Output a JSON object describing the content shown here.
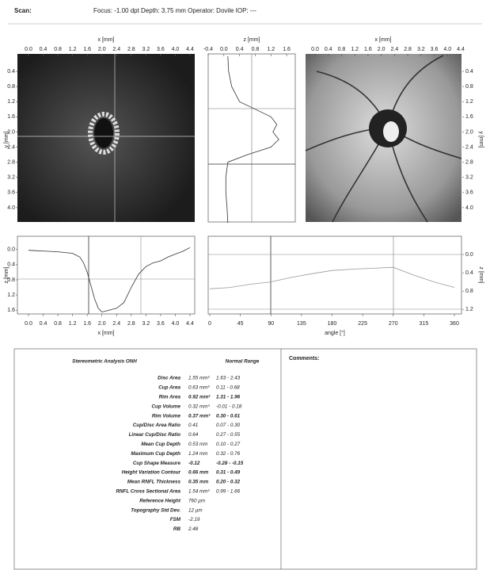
{
  "header": {
    "scan": "Scan:",
    "info": "Focus: -1.00 dpt  Depth: 3.75 mm  Operator: Dovile  IOP: ---"
  },
  "plots": {
    "topo": {
      "xlabel": "x [mm]",
      "ylabel": "y [mm]",
      "xlim": [
        0,
        4.4
      ],
      "ylim": [
        0,
        4.4
      ],
      "xticks": [
        {
          "value": 0,
          "label": "0.0"
        },
        0.4,
        0.8,
        1.2,
        1.6,
        {
          "value": 2,
          "label": "2.0"
        },
        2.4,
        2.8,
        3.2,
        3.6,
        {
          "value": 4,
          "label": "4.0"
        },
        4.4
      ],
      "yticks": [
        0.4,
        0.8,
        1.2,
        1.6,
        {
          "value": 2,
          "label": "2.0"
        },
        2.4,
        2.8,
        3.2,
        3.6,
        {
          "value": 4,
          "label": "4.0"
        }
      ]
    },
    "zprofile": {
      "xlabel": "z [mm]",
      "xlim": [
        -0.4,
        1.82
      ],
      "ylim": [
        0,
        4.4
      ],
      "xticks": [
        -0.4,
        {
          "value": 0,
          "label": "0.0"
        },
        0.4,
        0.8,
        1.2,
        1.6
      ],
      "y": [
        0,
        0.4,
        0.8,
        1.2,
        1.4,
        1.6,
        1.8,
        2,
        2.2,
        2.4,
        2.6,
        2.8,
        3.2,
        3.6,
        4,
        4.4
      ],
      "z": [
        0.1,
        0.12,
        0.2,
        0.4,
        0.8,
        1.2,
        1.35,
        1.25,
        1.4,
        1.2,
        0.6,
        0.1,
        0.05,
        0.05,
        0.08,
        0.1
      ]
    },
    "reflect": {
      "xlabel": "x [mm]",
      "ylabel": "y [mm]",
      "xlim": [
        0,
        4.4
      ],
      "ylim": [
        0,
        4.4
      ],
      "xticks": [
        {
          "value": 0,
          "label": "0.0"
        },
        0.4,
        0.8,
        1.2,
        1.6,
        {
          "value": 2,
          "label": "2.0"
        },
        2.4,
        2.8,
        3.2,
        3.6,
        {
          "value": 4,
          "label": "4.0"
        },
        4.4
      ],
      "yticks": [
        0.4,
        0.8,
        1.2,
        1.6,
        {
          "value": 2,
          "label": "2.0"
        },
        2.4,
        2.8,
        3.2,
        3.6,
        {
          "value": 4,
          "label": "4.0"
        }
      ]
    },
    "profile_x": {
      "xlabel": "x [mm]",
      "ylabel": "z [mm]",
      "xlim": [
        0,
        4.4
      ],
      "ylim": [
        -0.35,
        1.7
      ],
      "xticks": [
        {
          "value": 0,
          "label": "0.0"
        },
        0.4,
        0.8,
        1.2,
        1.6,
        {
          "value": 2,
          "label": "2.0"
        },
        2.4,
        2.8,
        3.2,
        3.6,
        {
          "value": 4,
          "label": "4.0"
        },
        4.4
      ],
      "yticks": [
        {
          "value": 0,
          "label": "0.0"
        },
        0.4,
        0.8,
        1.2,
        1.6
      ],
      "x": [
        0,
        0.2,
        0.4,
        0.6,
        0.8,
        1,
        1.2,
        1.4,
        1.5,
        1.6,
        1.7,
        1.8,
        1.9,
        2,
        2.2,
        2.4,
        2.6,
        2.8,
        3,
        3.2,
        3.4,
        3.6,
        3.8,
        4,
        4.2,
        4.4
      ],
      "z": [
        0.02,
        0.03,
        0.04,
        0.05,
        0.06,
        0.08,
        0.1,
        0.2,
        0.35,
        0.6,
        0.95,
        1.3,
        1.55,
        1.65,
        1.6,
        1.55,
        1.4,
        1,
        0.65,
        0.45,
        0.35,
        0.3,
        0.2,
        0.12,
        0.05,
        -0.05
      ]
    },
    "contour": {
      "xlabel": "angle [°]",
      "ylabel": "z [mm]",
      "xlim": [
        0,
        360
      ],
      "ylim": [
        -0.4,
        1.3
      ],
      "xticks": [
        0,
        45,
        90,
        135,
        180,
        225,
        270,
        315,
        360
      ],
      "yticks": [
        {
          "value": 0,
          "label": "0.0"
        },
        0.4,
        0.8,
        1.2
      ],
      "angle": [
        0,
        30,
        60,
        90,
        120,
        150,
        180,
        210,
        240,
        270,
        300,
        330,
        360
      ],
      "z": [
        0.75,
        0.72,
        0.65,
        0.6,
        0.5,
        0.42,
        0.35,
        0.32,
        0.3,
        0.28,
        0.45,
        0.6,
        0.72
      ]
    }
  },
  "table": {
    "title": "Stereometric Analysis ONH",
    "range_title": "Normal Range",
    "comments": "Comments:",
    "rows": [
      {
        "label": "Disc Area",
        "value": "1.55 mm²",
        "range": "1.63 - 2.43"
      },
      {
        "label": "Cup Area",
        "value": "0.63 mm²",
        "range": "0.11 - 0.68"
      },
      {
        "label": "Rim Area",
        "value": "0.92 mm²",
        "range": "1.31 - 1.96",
        "bold": true
      },
      {
        "label": "Cup Volume",
        "value": "0.32 mm³",
        "range": "-0.01 - 0.18"
      },
      {
        "label": "Rim Volume",
        "value": "0.37 mm³",
        "range": "0.30 - 0.61",
        "bold": true
      },
      {
        "label": "Cup/Disc Area Ratio",
        "value": "0.41",
        "range": "0.07 - 0.30"
      },
      {
        "label": "Linear Cup/Disc Ratio",
        "value": "0.64",
        "range": "0.27 - 0.55"
      },
      {
        "label": "Mean Cup Depth",
        "value": "0.53 mm",
        "range": "0.10 - 0.27"
      },
      {
        "label": "Maximum Cup Depth",
        "value": "1.24 mm",
        "range": "0.32 - 0.76"
      },
      {
        "label": "Cup Shape Measure",
        "value": "-0.12",
        "range": "-0.28 - -0.15",
        "bold": true
      },
      {
        "label": "Height Variation Contour",
        "value": "0.66 mm",
        "range": "0.31 - 0.49",
        "bold": true
      },
      {
        "label": "Mean RNFL Thickness",
        "value": "0.35 mm",
        "range": "0.20 - 0.32",
        "bold": true
      },
      {
        "label": "RNFL Cross Sectional Area",
        "value": "1.54 mm²",
        "range": "0.99 - 1.66"
      },
      {
        "label": "Reference Height",
        "value": "760 µm"
      },
      {
        "label": "Topography Std Dev.",
        "value": "12 µm"
      },
      {
        "label": "FSM",
        "value": "-2.19"
      },
      {
        "label": "RB",
        "value": "2.48"
      }
    ]
  }
}
